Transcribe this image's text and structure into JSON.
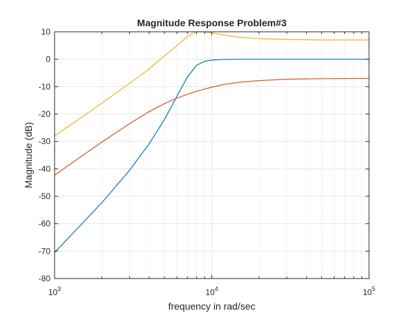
{
  "chart_data": {
    "type": "line",
    "title": "Magnitude Response Problem#3",
    "xlabel": "frequency in rad/sec",
    "ylabel": "Magnitude (dB)",
    "x_scale": "log",
    "xlim": [
      1000,
      100000
    ],
    "ylim": [
      -80,
      10
    ],
    "grid": true,
    "x_ticks": [
      {
        "value": 1000,
        "base": "10",
        "exp": "3"
      },
      {
        "value": 10000,
        "base": "10",
        "exp": "4"
      },
      {
        "value": 100000,
        "base": "10",
        "exp": "5"
      }
    ],
    "y_ticks": [
      "10",
      "0",
      "-10",
      "-20",
      "-30",
      "-40",
      "-50",
      "-60",
      "-70",
      "-80"
    ],
    "series": [
      {
        "color": "#0072BD",
        "x": [
          1000,
          1500,
          2000,
          3000,
          4000,
          5000,
          6000,
          7000,
          8000,
          9000,
          10000,
          12000,
          15000,
          20000,
          30000,
          50000,
          100000
        ],
        "y": [
          -70.5,
          -59.9,
          -52.3,
          -40.5,
          -30.8,
          -22.0,
          -13.5,
          -6.5,
          -2.2,
          -0.8,
          -0.3,
          -0.1,
          0,
          0,
          0,
          0,
          0
        ]
      },
      {
        "color": "#D95319",
        "x": [
          1000,
          1500,
          2000,
          3000,
          4000,
          5000,
          6000,
          7000,
          8000,
          10000,
          12000,
          15000,
          20000,
          30000,
          50000,
          100000
        ],
        "y": [
          -42.3,
          -35.2,
          -30.2,
          -23.5,
          -19.1,
          -16.2,
          -14.2,
          -12.8,
          -11.7,
          -10.2,
          -9.2,
          -8.4,
          -7.8,
          -7.3,
          -7.1,
          -7.0
        ]
      },
      {
        "color": "#EDB120",
        "x": [
          1000,
          1500,
          2000,
          3000,
          4000,
          5000,
          6000,
          7000,
          8000,
          9000,
          10000,
          12000,
          15000,
          20000,
          30000,
          50000,
          100000
        ],
        "y": [
          -28.0,
          -21.0,
          -16.0,
          -8.8,
          -3.5,
          1.2,
          5.0,
          8.3,
          10.0,
          10.0,
          9.6,
          8.8,
          8.0,
          7.5,
          7.2,
          7.0,
          7.0
        ]
      }
    ]
  }
}
